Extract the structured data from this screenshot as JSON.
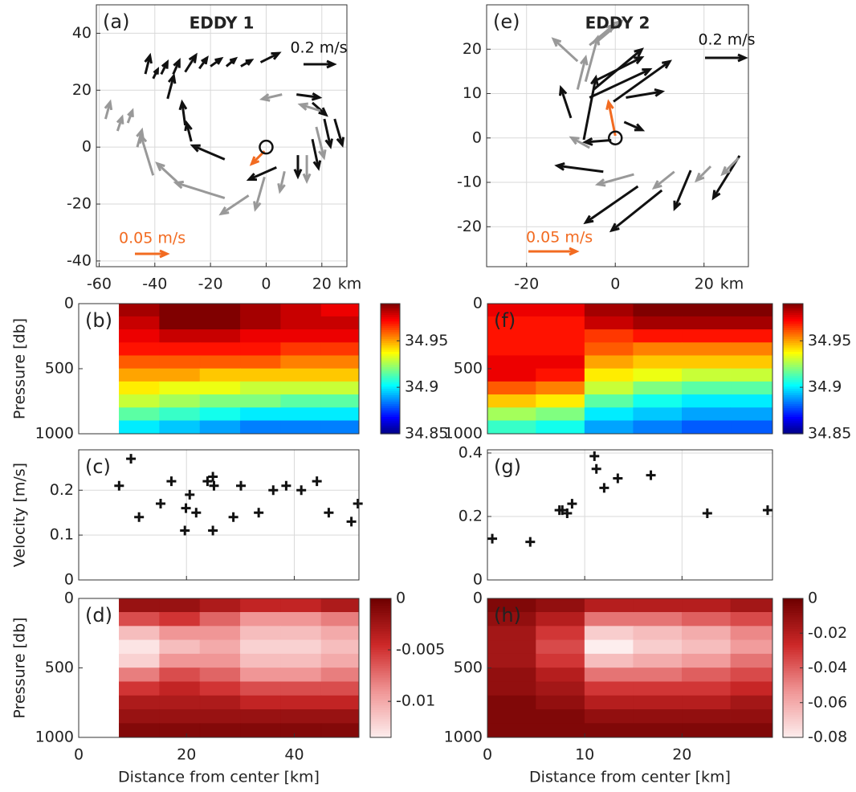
{
  "chart_data": [
    {
      "type": "quiver",
      "panel_label": "(a)",
      "title": "EDDY 1",
      "xlim": [
        -61,
        29
      ],
      "ylim": [
        -42,
        50
      ],
      "xticks": [
        -60,
        -40,
        -20,
        0,
        20
      ],
      "yticks": [
        -40,
        -20,
        0,
        20,
        40
      ],
      "x_unit": "km",
      "grid": true,
      "center": {
        "x": 0,
        "y": 0
      },
      "references": [
        {
          "label": "0.2 m/s",
          "value": 0.2,
          "color": "#111111"
        },
        {
          "label": "0.05 m/s",
          "value": 0.05,
          "color": "#f26b21"
        }
      ],
      "series": [
        {
          "color": "#111111",
          "x": [
            -43.4,
            -40.6,
            -37.7,
            -33.4,
            -29.1,
            -24,
            -20,
            -14.3,
            -9.1,
            -2,
            -35.4,
            -29.1,
            -26.9,
            -14.9,
            3.7,
            11.4,
            16.6,
            20.9,
            24.6,
            16.6,
            10.9
          ],
          "y": [
            25.7,
            24.1,
            25.6,
            25.6,
            26.4,
            27.6,
            28.4,
            28.4,
            28.4,
            29.8,
            17,
            7.7,
            2,
            -4.3,
            -7.1,
            -2.8,
            2.8,
            9.9,
            9.9,
            15.6,
            18.5
          ],
          "u": [
            0.03,
            0.03,
            0.04,
            0.04,
            0.07,
            0.05,
            0.07,
            0.06,
            0.07,
            0.12,
            0.04,
            -0.02,
            -0.03,
            -0.21,
            -0.18,
            0,
            0.04,
            0.04,
            0.05,
            0.09,
            0.15
          ],
          "v": [
            0.12,
            0.06,
            0.08,
            0.09,
            0.11,
            0.07,
            0.05,
            0.05,
            0.04,
            0.06,
            0.15,
            0.15,
            0.12,
            0.09,
            -0.08,
            -0.14,
            -0.19,
            -0.18,
            -0.17,
            -0.08,
            -0.02
          ]
        },
        {
          "color": "#999999",
          "x": [
            -57.7,
            -53.4,
            -49.7,
            -46.3,
            -40.6,
            -32,
            -14.9,
            -6.3,
            -0.6,
            6.6,
            14.6,
            18,
            19.4,
            5.7
          ],
          "y": [
            9.9,
            5.7,
            8.5,
            0,
            -9.9,
            -12.2,
            -17.9,
            -17,
            -10.5,
            -8.5,
            -2.8,
            7.1,
            12.8,
            18.5
          ],
          "u": [
            0.03,
            0.03,
            0.03,
            0.03,
            -0.08,
            -0.13,
            -0.32,
            -0.18,
            -0.06,
            -0.03,
            0,
            0.05,
            -0.13,
            -0.13
          ],
          "v": [
            0.11,
            0.09,
            0.08,
            0.11,
            0.26,
            0.12,
            0.1,
            -0.12,
            -0.21,
            -0.13,
            -0.17,
            -0.2,
            0.04,
            -0.03
          ]
        },
        {
          "color": "#f26b21",
          "x": [
            -0.6
          ],
          "y": [
            -1.4
          ],
          "u": [
            -0.02
          ],
          "v": [
            -0.02
          ]
        }
      ]
    },
    {
      "type": "heatmap",
      "panel_label": "(b)",
      "ylabel": "Pressure [db]",
      "xlim": [
        0,
        52
      ],
      "ylim": [
        0,
        1000
      ],
      "y_reversed": true,
      "yticks": [
        0,
        500,
        1000
      ],
      "colormap": "jet",
      "clim": [
        34.85,
        34.99
      ],
      "cticks": [
        34.85,
        34.9,
        34.95
      ],
      "x": [
        7.5,
        15,
        22.5,
        30,
        37.5,
        45,
        52
      ],
      "y": [
        0,
        100,
        200,
        300,
        400,
        500,
        600,
        700,
        800,
        900,
        1000
      ],
      "z": [
        [
          34.985,
          34.99,
          34.99,
          34.985,
          34.98,
          34.975
        ],
        [
          34.98,
          34.99,
          34.99,
          34.985,
          34.98,
          34.98
        ],
        [
          34.975,
          34.98,
          34.98,
          34.975,
          34.975,
          34.975
        ],
        [
          34.97,
          34.97,
          34.97,
          34.97,
          34.965,
          34.965
        ],
        [
          34.96,
          34.96,
          34.96,
          34.96,
          34.955,
          34.955
        ],
        [
          34.95,
          34.95,
          34.945,
          34.945,
          34.945,
          34.945
        ],
        [
          34.94,
          34.935,
          34.935,
          34.93,
          34.93,
          34.93
        ],
        [
          34.93,
          34.925,
          34.92,
          34.92,
          34.915,
          34.915
        ],
        [
          34.915,
          34.91,
          34.905,
          34.9,
          34.9,
          34.9
        ],
        [
          34.9,
          34.895,
          34.89,
          34.885,
          34.885,
          34.885
        ]
      ]
    },
    {
      "type": "scatter",
      "panel_label": "(c)",
      "ylabel": "Velocity [m/s]",
      "xlim": [
        0,
        52
      ],
      "ylim": [
        0,
        0.29
      ],
      "xticks": [
        0,
        20,
        40
      ],
      "show_xtick_labels": false,
      "yticks": [
        0,
        0.1,
        0.2
      ],
      "grid": true,
      "color": "#111111",
      "x": [
        7.5,
        9.7,
        11.2,
        15.2,
        17.2,
        19.7,
        19.9,
        20.6,
        21.8,
        23.9,
        24.9,
        25.1,
        24.9,
        28.7,
        30.1,
        33.4,
        36.1,
        38.5,
        41.3,
        44.2,
        46.4,
        50.6,
        51.8
      ],
      "y": [
        0.21,
        0.27,
        0.14,
        0.17,
        0.22,
        0.11,
        0.16,
        0.19,
        0.15,
        0.22,
        0.23,
        0.21,
        0.11,
        0.14,
        0.21,
        0.15,
        0.2,
        0.21,
        0.2,
        0.22,
        0.15,
        0.13,
        0.17
      ]
    },
    {
      "type": "heatmap",
      "panel_label": "(d)",
      "ylabel": "Pressure [db]",
      "xlabel": "Distance from center [km]",
      "xlim": [
        0,
        52
      ],
      "ylim": [
        0,
        1000
      ],
      "y_reversed": true,
      "xticks": [
        0,
        20,
        40
      ],
      "yticks": [
        0,
        500,
        1000
      ],
      "colormap": "reds",
      "clim": [
        -0.0135,
        0
      ],
      "cticks": [
        0,
        -0.005,
        -0.01
      ],
      "x": [
        7.5,
        15,
        22.5,
        30,
        37.5,
        45,
        52
      ],
      "y": [
        0,
        100,
        200,
        300,
        400,
        500,
        600,
        700,
        800,
        900,
        1000
      ],
      "z": [
        [
          -0.002,
          -0.002,
          -0.003,
          -0.004,
          -0.004,
          -0.003
        ],
        [
          -0.006,
          -0.005,
          -0.007,
          -0.009,
          -0.009,
          -0.008
        ],
        [
          -0.011,
          -0.009,
          -0.009,
          -0.011,
          -0.011,
          -0.01
        ],
        [
          -0.013,
          -0.011,
          -0.01,
          -0.012,
          -0.012,
          -0.011
        ],
        [
          -0.012,
          -0.009,
          -0.009,
          -0.011,
          -0.011,
          -0.01
        ],
        [
          -0.008,
          -0.006,
          -0.007,
          -0.009,
          -0.009,
          -0.008
        ],
        [
          -0.005,
          -0.004,
          -0.005,
          -0.006,
          -0.006,
          -0.006
        ],
        [
          -0.003,
          -0.003,
          -0.003,
          -0.004,
          -0.004,
          -0.004
        ],
        [
          -0.002,
          -0.002,
          -0.002,
          -0.002,
          -0.002,
          -0.002
        ],
        [
          -0.001,
          -0.001,
          -0.001,
          -0.001,
          -0.001,
          -0.001
        ]
      ]
    },
    {
      "type": "quiver",
      "panel_label": "(e)",
      "title": "EDDY 2",
      "xlim": [
        -29,
        30
      ],
      "ylim": [
        -29,
        30
      ],
      "xticks": [
        -20,
        0,
        20
      ],
      "yticks": [
        -20,
        -10,
        0,
        10,
        20
      ],
      "x_unit": "km",
      "grid": true,
      "center": {
        "x": 0,
        "y": 0
      },
      "references": [
        {
          "label": "0.2 m/s",
          "value": 0.2,
          "color": "#111111"
        },
        {
          "label": "0.05 m/s",
          "value": 0.05,
          "color": "#f26b21"
        }
      ],
      "series": [
        {
          "color": "#111111",
          "x": [
            -10,
            -7.1,
            -4.9,
            -5.8,
            -4.9,
            -0.4,
            2.4,
            2,
            -0.9,
            -2.7,
            5.1,
            10.5,
            17,
            28
          ],
          "y": [
            4.5,
            -0.4,
            12.7,
            9.1,
            10.9,
            8.2,
            9.1,
            3.6,
            -0.5,
            -7.6,
            -10.9,
            -11.8,
            -7.3,
            -4
          ],
          "u": [
            -0.05,
            0.06,
            0.24,
            0.3,
            0.24,
            0.28,
            0.18,
            0.09,
            -0.13,
            -0.23,
            -0.26,
            -0.25,
            -0.08,
            -0.13
          ],
          "v": [
            0.15,
            0.31,
            0.12,
            0.14,
            0.2,
            0.2,
            0.03,
            -0.04,
            -0.01,
            0.03,
            -0.18,
            -0.2,
            -0.19,
            -0.21
          ]
        },
        {
          "color": "#999999",
          "x": [
            -8.5,
            -5.8,
            -4,
            -6.7,
            -8.5,
            -5.8,
            4.2,
            13.3,
            21.5,
            27.8
          ],
          "y": [
            17.3,
            20.9,
            21.8,
            12.7,
            10.9,
            -2.2,
            -8.2,
            -7.6,
            -6.4,
            -4.5
          ],
          "u": [
            -0.12,
            0.12,
            0.12,
            0.06,
            0.04,
            -0.09,
            -0.18,
            -0.1,
            -0.07,
            -0.08
          ],
          "v": [
            0.11,
            0.1,
            0.1,
            0.22,
            0.16,
            0.05,
            -0.05,
            -0.08,
            -0.07,
            -0.08
          ]
        },
        {
          "color": "#f26b21",
          "x": [
            0
          ],
          "y": [
            0.5
          ],
          "u": [
            -0.007
          ],
          "v": [
            0.035
          ]
        }
      ]
    },
    {
      "type": "heatmap",
      "panel_label": "(f)",
      "xlim": [
        0,
        29.3
      ],
      "ylim": [
        0,
        1000
      ],
      "y_reversed": true,
      "yticks": [
        0,
        500,
        1000
      ],
      "colormap": "jet",
      "clim": [
        34.85,
        34.99
      ],
      "cticks": [
        34.85,
        34.9,
        34.95
      ],
      "x": [
        0,
        5,
        10,
        15,
        20,
        25,
        29.3
      ],
      "y": [
        0,
        100,
        200,
        300,
        400,
        500,
        600,
        700,
        800,
        900,
        1000
      ],
      "z": [
        [
          34.975,
          34.975,
          34.985,
          34.99,
          34.99,
          34.99
        ],
        [
          34.97,
          34.97,
          34.98,
          34.985,
          34.985,
          34.985
        ],
        [
          34.97,
          34.97,
          34.965,
          34.97,
          34.97,
          34.97
        ],
        [
          34.97,
          34.97,
          34.96,
          34.955,
          34.955,
          34.955
        ],
        [
          34.975,
          34.975,
          34.95,
          34.945,
          34.945,
          34.945
        ],
        [
          34.975,
          34.97,
          34.94,
          34.935,
          34.93,
          34.93
        ],
        [
          34.96,
          34.955,
          34.93,
          34.92,
          34.915,
          34.915
        ],
        [
          34.945,
          34.94,
          34.915,
          34.905,
          34.9,
          34.9
        ],
        [
          34.925,
          34.92,
          34.9,
          34.895,
          34.89,
          34.89
        ],
        [
          34.91,
          34.905,
          34.89,
          34.885,
          34.88,
          34.88
        ]
      ]
    },
    {
      "type": "scatter",
      "panel_label": "(g)",
      "xlim": [
        0,
        29.3
      ],
      "ylim": [
        0,
        0.41
      ],
      "xticks": [
        0,
        10,
        20
      ],
      "show_xtick_labels": false,
      "yticks": [
        0,
        0.2,
        0.4
      ],
      "grid": true,
      "color": "#111111",
      "x": [
        0.5,
        4.4,
        7.4,
        7.7,
        8.2,
        8.7,
        11,
        11.2,
        12,
        13.4,
        16.8,
        22.6,
        28.8
      ],
      "y": [
        0.13,
        0.12,
        0.22,
        0.22,
        0.21,
        0.24,
        0.39,
        0.35,
        0.29,
        0.32,
        0.33,
        0.21,
        0.22
      ]
    },
    {
      "type": "heatmap",
      "panel_label": "(h)",
      "xlabel": "Distance from center [km]",
      "xlim": [
        0,
        29.3
      ],
      "ylim": [
        0,
        1000
      ],
      "y_reversed": true,
      "xticks": [
        0,
        10,
        20
      ],
      "yticks": [
        0,
        500,
        1000
      ],
      "colormap": "reds",
      "clim": [
        -0.08,
        0
      ],
      "cticks": [
        0,
        -0.02,
        -0.04,
        -0.06,
        -0.08
      ],
      "x": [
        0,
        5,
        10,
        15,
        20,
        25,
        29.3
      ],
      "y": [
        0,
        100,
        200,
        300,
        400,
        500,
        600,
        700,
        800,
        900,
        1000
      ],
      "z": [
        [
          -0.005,
          -0.01,
          -0.02,
          -0.02,
          -0.02,
          -0.015
        ],
        [
          -0.01,
          -0.02,
          -0.045,
          -0.045,
          -0.04,
          -0.035
        ],
        [
          -0.015,
          -0.03,
          -0.07,
          -0.065,
          -0.06,
          -0.05
        ],
        [
          -0.015,
          -0.035,
          -0.08,
          -0.07,
          -0.065,
          -0.055
        ],
        [
          -0.015,
          -0.03,
          -0.065,
          -0.06,
          -0.055,
          -0.045
        ],
        [
          -0.01,
          -0.02,
          -0.045,
          -0.045,
          -0.04,
          -0.035
        ],
        [
          -0.01,
          -0.015,
          -0.03,
          -0.03,
          -0.03,
          -0.025
        ],
        [
          -0.005,
          -0.01,
          -0.02,
          -0.02,
          -0.02,
          -0.015
        ],
        [
          -0.005,
          -0.005,
          -0.01,
          -0.01,
          -0.01,
          -0.01
        ],
        [
          -0.005,
          -0.005,
          -0.005,
          -0.005,
          -0.005,
          -0.005
        ]
      ]
    }
  ]
}
